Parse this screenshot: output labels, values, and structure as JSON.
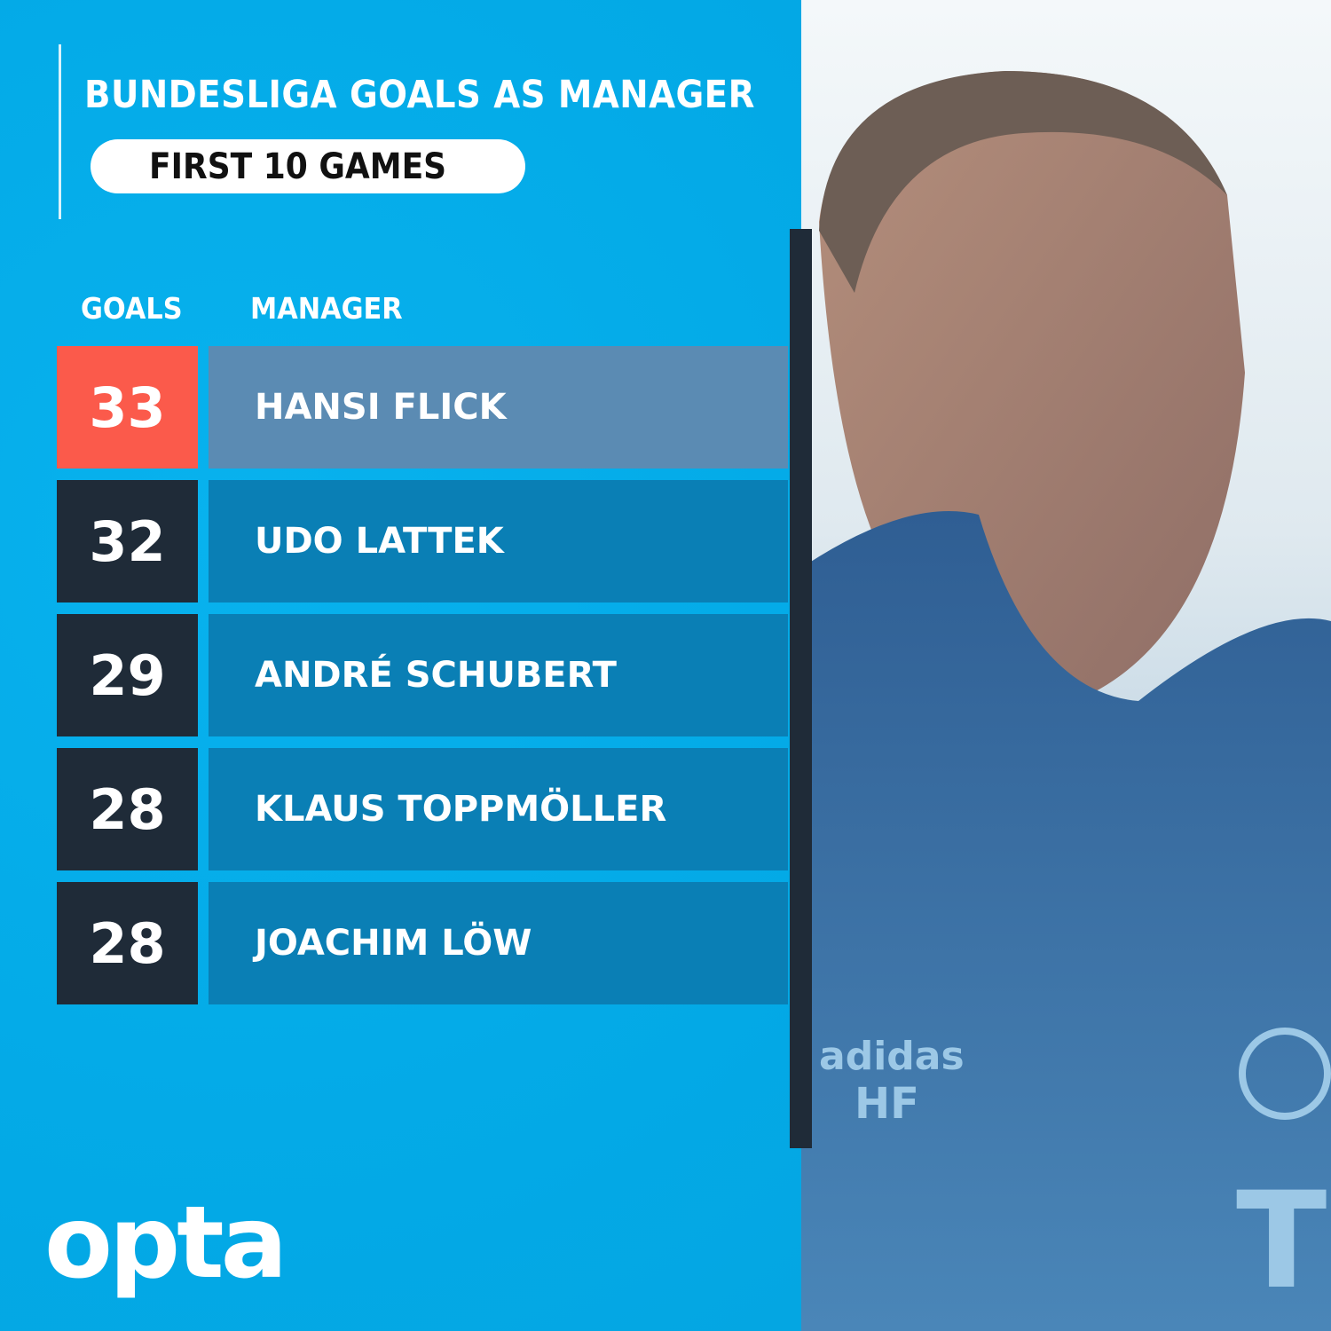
{
  "header": {
    "title": "BUNDESLIGA GOALS AS MANAGER",
    "subtitle": "FIRST 10 GAMES"
  },
  "columns": {
    "goals": "GOALS",
    "manager": "MANAGER"
  },
  "chart_data": {
    "type": "table",
    "title": "BUNDESLIGA GOALS AS MANAGER",
    "subtitle": "FIRST 10 GAMES",
    "columns": [
      "GOALS",
      "MANAGER"
    ],
    "rows": [
      {
        "goals": "33",
        "manager": "HANSI FLICK",
        "highlight": true
      },
      {
        "goals": "32",
        "manager": "UDO LATTEK"
      },
      {
        "goals": "29",
        "manager": "ANDRÉ SCHUBERT"
      },
      {
        "goals": "28",
        "manager": "KLAUS TOPPMÖLLER"
      },
      {
        "goals": "28",
        "manager": "JOACHIM LÖW"
      }
    ]
  },
  "brand": {
    "logo": "opta"
  },
  "colors": {
    "background": "#04aeea",
    "highlight_goal": "#fb5a4b",
    "highlight_name": "#5b8bb3",
    "goal_box": "#1f2b38",
    "name_box": "#0a7fb5"
  }
}
